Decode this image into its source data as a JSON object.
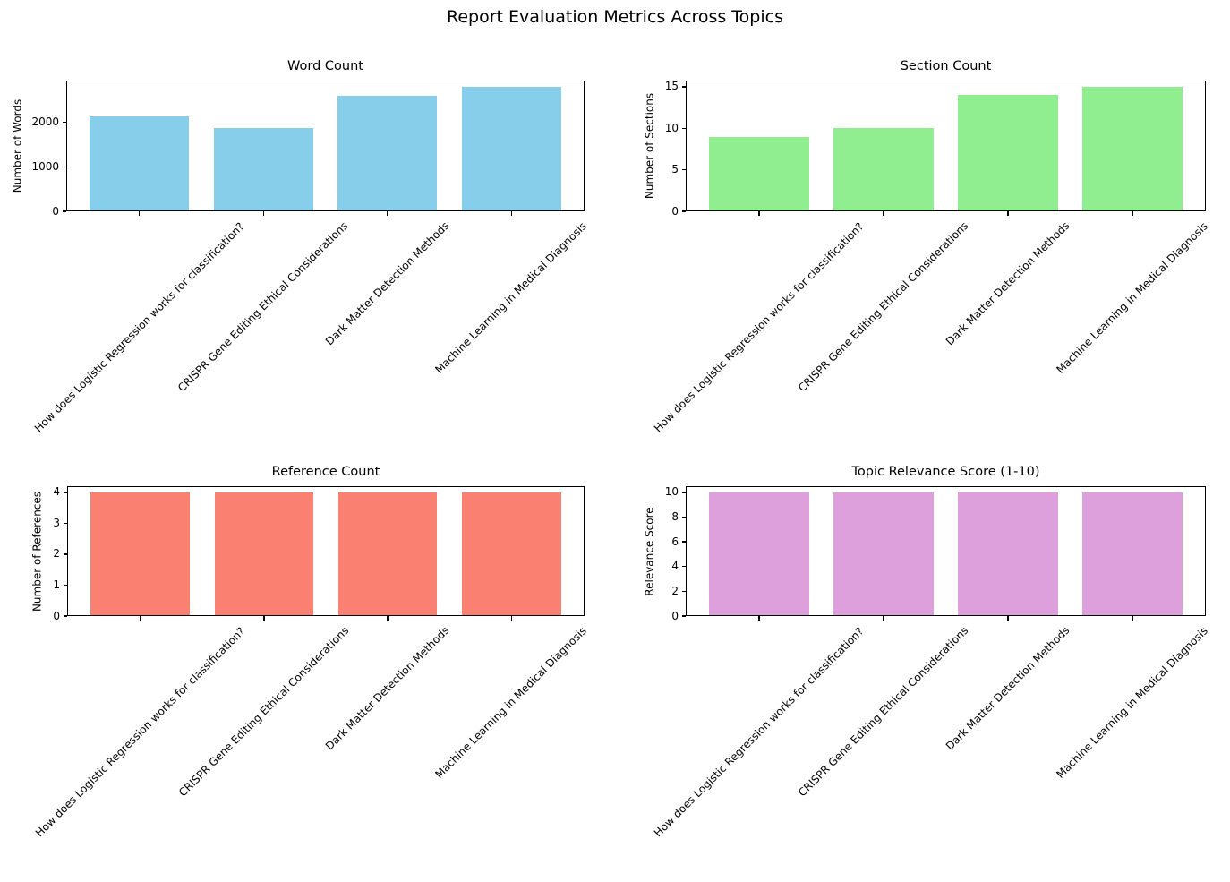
{
  "suptitle": "Report Evaluation Metrics Across Topics",
  "categories": [
    "How does Logistic Regression works for classification?",
    "CRISPR Gene Editing Ethical Considerations",
    "Dark Matter Detection Methods",
    "Machine Learning in Medical Diagnosis"
  ],
  "chart_data": [
    {
      "type": "bar",
      "title": "Word Count",
      "xlabel": "",
      "ylabel": "Number of Words",
      "categories": [
        "How does Logistic Regression works for classification?",
        "CRISPR Gene Editing Ethical Considerations",
        "Dark Matter Detection Methods",
        "Machine Learning in Medical Diagnosis"
      ],
      "values": [
        2130,
        1870,
        2600,
        2800
      ],
      "yticks": [
        0,
        1000,
        2000
      ],
      "ylim": [
        0,
        2940
      ],
      "bar_color": "#87CEEB",
      "grid": false,
      "legend": null,
      "xtick_rotation": 45
    },
    {
      "type": "bar",
      "title": "Section Count",
      "xlabel": "",
      "ylabel": "Number of Sections",
      "categories": [
        "How does Logistic Regression works for classification?",
        "CRISPR Gene Editing Ethical Considerations",
        "Dark Matter Detection Methods",
        "Machine Learning in Medical Diagnosis"
      ],
      "values": [
        9,
        10,
        14,
        15
      ],
      "yticks": [
        0,
        5,
        10,
        15
      ],
      "ylim": [
        0,
        15.75
      ],
      "bar_color": "#90EE90",
      "grid": false,
      "legend": null,
      "xtick_rotation": 45
    },
    {
      "type": "bar",
      "title": "Reference Count",
      "xlabel": "",
      "ylabel": "Number of References",
      "categories": [
        "How does Logistic Regression works for classification?",
        "CRISPR Gene Editing Ethical Considerations",
        "Dark Matter Detection Methods",
        "Machine Learning in Medical Diagnosis"
      ],
      "values": [
        4,
        4,
        4,
        4
      ],
      "yticks": [
        0,
        1,
        2,
        3,
        4
      ],
      "ylim": [
        0,
        4.2
      ],
      "bar_color": "#FA8072",
      "grid": false,
      "legend": null,
      "xtick_rotation": 45
    },
    {
      "type": "bar",
      "title": "Topic Relevance Score (1-10)",
      "xlabel": "",
      "ylabel": "Relevance Score",
      "categories": [
        "How does Logistic Regression works for classification?",
        "CRISPR Gene Editing Ethical Considerations",
        "Dark Matter Detection Methods",
        "Machine Learning in Medical Diagnosis"
      ],
      "values": [
        10,
        10,
        10,
        10
      ],
      "yticks": [
        0,
        2,
        4,
        6,
        8,
        10
      ],
      "ylim": [
        0,
        10.5
      ],
      "bar_color": "#DDA0DD",
      "grid": false,
      "legend": null,
      "xtick_rotation": 45
    }
  ]
}
